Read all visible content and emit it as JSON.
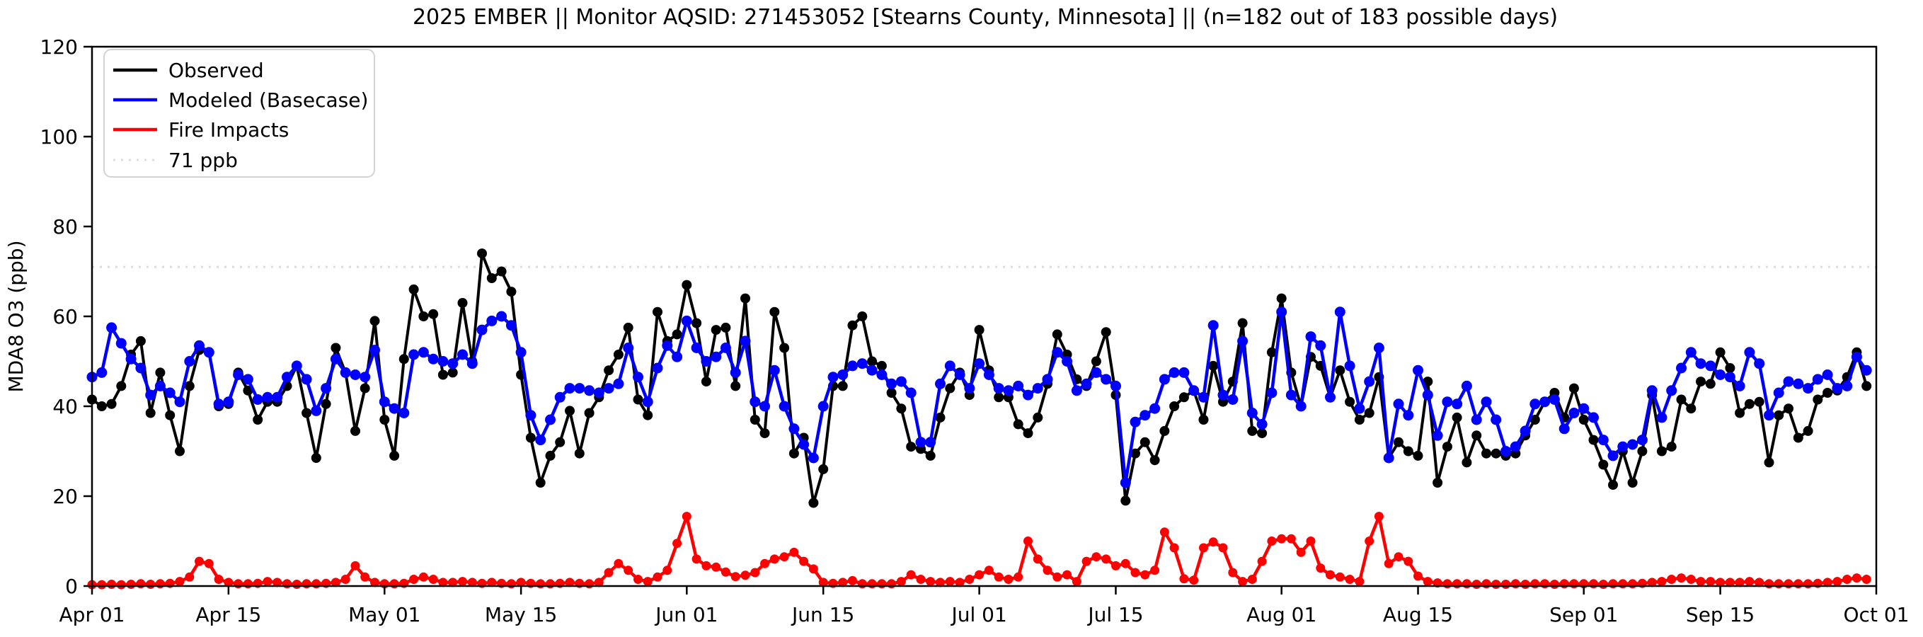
{
  "chart_data": {
    "type": "line",
    "title": "2025 EMBER || Monitor AQSID: 271453052 [Stearns County, Minnesota] || (n=182 out of 183 possible days)",
    "ylabel": "MDA8 O3 (ppb)",
    "ylim": [
      0,
      120
    ],
    "yticks": [
      0,
      20,
      40,
      60,
      80,
      100,
      120
    ],
    "x_start_date": "Apr 01",
    "x_end_date": "Oct 01",
    "n_days": 183,
    "grid": false,
    "legend_position": "upper left",
    "x_ticks": [
      {
        "label": "Apr 01",
        "day": 0
      },
      {
        "label": "Apr 15",
        "day": 14
      },
      {
        "label": "May 01",
        "day": 30
      },
      {
        "label": "May 15",
        "day": 44
      },
      {
        "label": "Jun 01",
        "day": 61
      },
      {
        "label": "Jun 15",
        "day": 75
      },
      {
        "label": "Jul 01",
        "day": 91
      },
      {
        "label": "Jul 15",
        "day": 105
      },
      {
        "label": "Aug 01",
        "day": 122
      },
      {
        "label": "Aug 15",
        "day": 136
      },
      {
        "label": "Sep 01",
        "day": 153
      },
      {
        "label": "Sep 15",
        "day": 167
      },
      {
        "label": "Oct 01",
        "day": 183
      }
    ],
    "threshold": {
      "label": "71 ppb",
      "value": 71,
      "color": "#dcdcdc",
      "style": "dotted"
    },
    "series": [
      {
        "name": "Observed",
        "color": "#000000",
        "values": [
          41.5,
          40,
          40.5,
          44.5,
          51.5,
          54.5,
          38.5,
          47.5,
          38,
          30,
          44.5,
          52.5,
          52,
          40,
          40.5,
          47.5,
          43.5,
          37,
          41,
          41,
          44.5,
          49,
          38.5,
          28.5,
          40.5,
          53,
          47.5,
          34.5,
          44,
          59,
          37,
          29,
          50.5,
          66,
          60,
          60.5,
          47,
          47.5,
          63,
          50,
          74,
          68.5,
          70,
          65.5,
          47,
          33,
          23,
          29,
          32,
          39,
          29.5,
          38.5,
          42,
          48,
          51.5,
          57.5,
          41.5,
          38,
          61,
          54.5,
          56,
          67,
          58.5,
          45.5,
          57,
          57.5,
          44.5,
          64,
          37,
          34,
          61,
          53,
          29.5,
          33,
          18.5,
          26,
          44.5,
          44.5,
          58,
          60,
          50,
          49,
          43,
          39.5,
          31,
          30.5,
          29,
          37.5,
          44,
          47.5,
          42.5,
          57,
          48,
          42,
          42,
          36,
          34,
          37.5,
          45,
          56,
          51.5,
          46,
          44.5,
          50,
          56.5,
          42.5,
          19,
          29.5,
          32,
          28,
          34.5,
          40,
          42,
          43.5,
          37,
          49,
          41,
          45.5,
          58.5,
          34.5,
          34,
          52,
          64,
          47.5,
          40,
          51,
          49,
          42,
          48,
          41,
          37,
          38.5,
          46.5,
          28.5,
          32,
          30,
          29,
          45.5,
          23,
          31,
          37.5,
          27.5,
          33.5,
          29.5,
          29.5,
          29,
          29.5,
          33.5,
          37,
          41,
          43,
          37.5,
          44,
          37,
          32.5,
          27,
          22.5,
          30,
          23,
          30,
          42.5,
          30,
          31,
          41.5,
          39.5,
          45.5,
          45,
          52,
          48.5,
          38.5,
          40.5,
          41,
          27.5,
          38,
          39.5,
          33,
          34.5,
          41.5,
          43,
          43.5,
          46.5,
          52,
          44.5
        ]
      },
      {
        "name": "Modeled (Basecase)",
        "color": "#0000ff",
        "values": [
          46.5,
          47.5,
          57.5,
          54,
          50.5,
          48.5,
          42.5,
          44.5,
          43,
          41,
          50,
          53.5,
          52,
          40.5,
          41,
          47,
          46,
          41.5,
          42,
          42,
          46.5,
          49,
          46,
          39,
          44,
          50.5,
          47.5,
          47,
          46.5,
          52.5,
          41,
          39.5,
          38.5,
          51.5,
          52,
          50.5,
          50,
          49.5,
          51.5,
          49.5,
          57,
          59,
          60,
          58,
          52,
          38,
          32.5,
          37,
          42,
          44,
          44,
          43.5,
          43,
          44,
          45,
          53,
          46.5,
          41,
          48.5,
          53.5,
          51,
          59,
          53,
          50,
          51,
          53,
          47.5,
          54.5,
          41,
          40,
          48,
          40,
          35,
          31.5,
          28.5,
          40,
          46.5,
          47,
          49,
          49.5,
          48,
          47,
          45,
          45.5,
          43,
          32,
          32,
          45,
          49,
          47,
          44,
          49.5,
          47,
          44,
          43.5,
          44.5,
          42.5,
          44,
          46,
          52,
          50,
          43.5,
          45,
          47.5,
          46,
          44.5,
          23,
          36.5,
          38,
          39.5,
          46,
          47.5,
          47.5,
          43.5,
          42,
          58,
          42.5,
          41.5,
          54.5,
          38.5,
          36,
          43,
          61,
          42.5,
          40,
          55.5,
          53.5,
          42,
          61,
          49,
          39.5,
          45.5,
          53,
          28.5,
          40.5,
          38,
          48,
          42.5,
          33.5,
          41,
          40.5,
          44.5,
          37,
          41,
          37,
          30,
          31,
          34.5,
          40.5,
          41,
          41.5,
          35,
          38.5,
          39.5,
          37.5,
          32.5,
          29,
          31,
          31.5,
          32.5,
          43.5,
          37.5,
          43.5,
          48.5,
          52,
          49.5,
          49,
          47,
          46.5,
          44.5,
          52,
          49.5,
          38,
          43,
          45.5,
          45,
          44,
          46,
          47,
          44,
          44.5,
          51,
          48
        ]
      },
      {
        "name": "Fire Impacts",
        "color": "#ff0000",
        "values": [
          0.3,
          0.3,
          0.4,
          0.3,
          0.4,
          0.5,
          0.4,
          0.5,
          0.6,
          1,
          2,
          5.5,
          5,
          1.5,
          0.8,
          0.5,
          0.5,
          0.6,
          1,
          0.8,
          0.5,
          0.4,
          0.5,
          0.5,
          0.6,
          0.8,
          1.5,
          4.5,
          2,
          0.8,
          0.5,
          0.5,
          0.6,
          1.5,
          2,
          1.5,
          0.8,
          0.8,
          1,
          0.8,
          0.6,
          0.8,
          0.6,
          0.5,
          0.8,
          0.6,
          0.5,
          0.5,
          0.6,
          0.8,
          0.6,
          0.5,
          0.8,
          3,
          5,
          3.5,
          1.5,
          1,
          2,
          3.5,
          9.5,
          15.5,
          6,
          4.5,
          4.2,
          3.1,
          2.1,
          2.4,
          3,
          5,
          6,
          6.5,
          7.5,
          5.5,
          3.8,
          0.8,
          0.6,
          0.8,
          1.2,
          0.5,
          0.5,
          0.5,
          0.5,
          1,
          2.5,
          1.5,
          1,
          0.8,
          1,
          0.8,
          1.5,
          2.5,
          3.5,
          2,
          1.5,
          2,
          10,
          6,
          3.5,
          2,
          2.5,
          1,
          5.5,
          6.5,
          6,
          4.5,
          5,
          3,
          2.5,
          3.5,
          12,
          8.5,
          1.6,
          1.3,
          8.5,
          9.8,
          8.5,
          3,
          1,
          1.5,
          5.5,
          10,
          10.5,
          10.5,
          7.5,
          10,
          4,
          2.5,
          2,
          1.5,
          1,
          10,
          15.5,
          5,
          6.5,
          5.5,
          2.2,
          1,
          0.7,
          0.5,
          0.5,
          0.5,
          0.4,
          0.5,
          0.4,
          0.4,
          0.5,
          0.4,
          0.5,
          0.5,
          0.4,
          0.5,
          0.5,
          0.5,
          0.5,
          0.4,
          0.5,
          0.5,
          0.5,
          0.6,
          0.8,
          1,
          1.5,
          1.8,
          1.5,
          1,
          1,
          0.8,
          0.8,
          0.8,
          1,
          0.8,
          0.5,
          0.5,
          0.5,
          0.5,
          0.5,
          0.6,
          0.8,
          1,
          1.5,
          1.8,
          1.5
        ]
      }
    ],
    "legend_entries": [
      "Observed",
      "Modeled (Basecase)",
      "Fire Impacts",
      "71 ppb"
    ]
  },
  "layout_colors": {
    "background": "#ffffff",
    "axis": "#000000",
    "legend_border": "#d3d3d3"
  }
}
